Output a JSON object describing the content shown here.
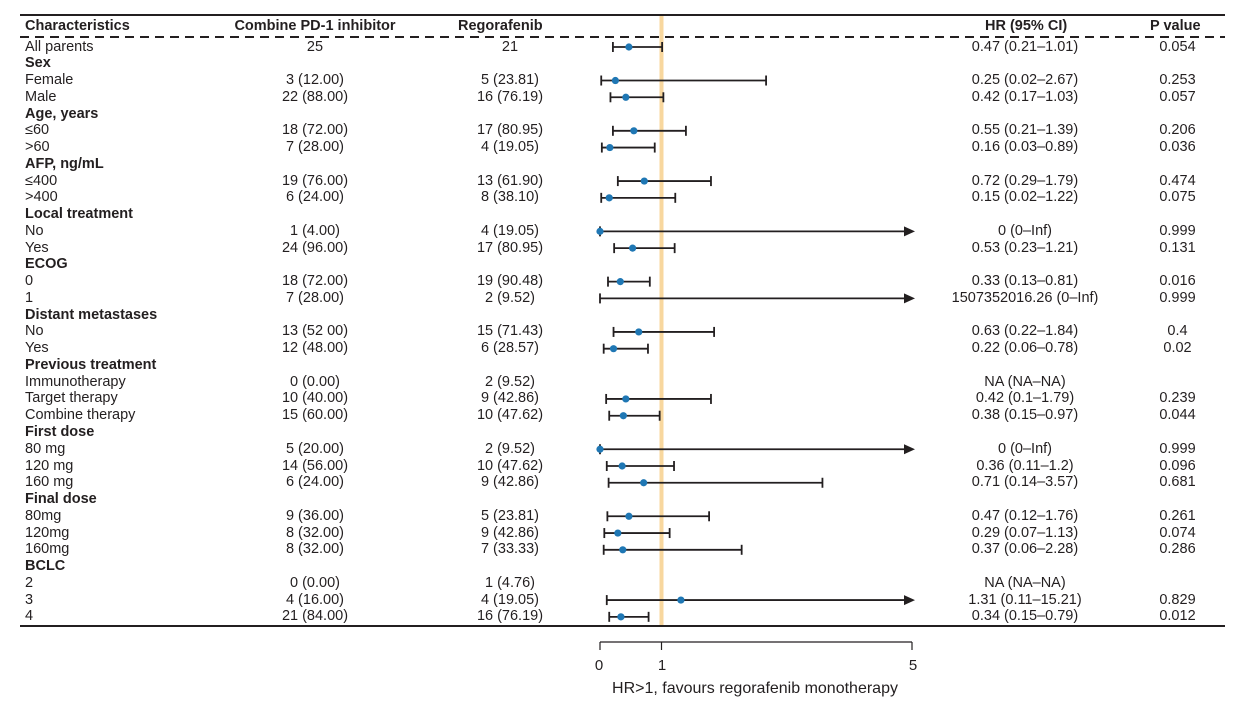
{
  "headers": {
    "characteristics": "Characteristics",
    "combine": "Combine PD-1 inhibitor",
    "regorafenib": "Regorafenib",
    "hr": "HR (95% CI)",
    "pvalue": "P value"
  },
  "chart_data": {
    "type": "forest",
    "xlabel": "HR>1, favours regorafenib monotherapy",
    "xlim": [
      0,
      5
    ],
    "ticks": [
      "0",
      "1",
      "5"
    ],
    "tick_values": [
      0,
      1,
      5
    ],
    "reference_line": 1,
    "rows": [
      {
        "label": "All parents",
        "group": false,
        "combine": "25",
        "regorafenib": "21",
        "hr_text": "0.47 (0.21–1.01)",
        "p": "0.054",
        "hr": 0.47,
        "lo": 0.21,
        "hi": 1.01,
        "arrow": false
      },
      {
        "label": "Sex",
        "group": true
      },
      {
        "label": "Female",
        "group": false,
        "combine": "3 (12.00)",
        "regorafenib": "5 (23.81)",
        "hr_text": "0.25 (0.02–2.67)",
        "p": "0.253",
        "hr": 0.25,
        "lo": 0.02,
        "hi": 2.67,
        "arrow": false
      },
      {
        "label": "Male",
        "group": false,
        "combine": "22 (88.00)",
        "regorafenib": "16 (76.19)",
        "hr_text": "0.42 (0.17–1.03)",
        "p": "0.057",
        "hr": 0.42,
        "lo": 0.17,
        "hi": 1.03,
        "arrow": false
      },
      {
        "label": "Age, years",
        "group": true
      },
      {
        "label": "≤60",
        "group": false,
        "combine": "18 (72.00)",
        "regorafenib": "17 (80.95)",
        "hr_text": "0.55 (0.21–1.39)",
        "p": "0.206",
        "hr": 0.55,
        "lo": 0.21,
        "hi": 1.39,
        "arrow": false
      },
      {
        "label": ">60",
        "group": false,
        "combine": "7 (28.00)",
        "regorafenib": "4 (19.05)",
        "hr_text": "0.16 (0.03–0.89)",
        "p": "0.036",
        "hr": 0.16,
        "lo": 0.03,
        "hi": 0.89,
        "arrow": false
      },
      {
        "label": "AFP, ng/mL",
        "group": true
      },
      {
        "label": "≤400",
        "group": false,
        "combine": "19 (76.00)",
        "regorafenib": "13 (61.90)",
        "hr_text": "0.72 (0.29–1.79)",
        "p": "0.474",
        "hr": 0.72,
        "lo": 0.29,
        "hi": 1.79,
        "arrow": false
      },
      {
        "label": ">400",
        "group": false,
        "combine": "6 (24.00)",
        "regorafenib": "8 (38.10)",
        "hr_text": "0.15 (0.02–1.22)",
        "p": "0.075",
        "hr": 0.15,
        "lo": 0.02,
        "hi": 1.22,
        "arrow": false
      },
      {
        "label": "Local treatment",
        "group": true
      },
      {
        "label": "No",
        "group": false,
        "combine": "1 (4.00)",
        "regorafenib": "4 (19.05)",
        "hr_text": "0 (0–Inf)",
        "p": "0.999",
        "hr": 0,
        "lo": 0,
        "hi": 5,
        "arrow": true
      },
      {
        "label": "Yes",
        "group": false,
        "combine": "24 (96.00)",
        "regorafenib": "17 (80.95)",
        "hr_text": "0.53 (0.23–1.21)",
        "p": "0.131",
        "hr": 0.53,
        "lo": 0.23,
        "hi": 1.21,
        "arrow": false
      },
      {
        "label": "ECOG",
        "group": true
      },
      {
        "label": "0",
        "group": false,
        "combine": "18 (72.00)",
        "regorafenib": "19 (90.48)",
        "hr_text": "0.33 (0.13–0.81)",
        "p": "0.016",
        "hr": 0.33,
        "lo": 0.13,
        "hi": 0.81,
        "arrow": false
      },
      {
        "label": "1",
        "group": false,
        "combine": "7 (28.00)",
        "regorafenib": "2 (9.52)",
        "hr_text": "1507352016.26 (0–Inf)",
        "p": "0.999",
        "hr": null,
        "lo": 0,
        "hi": 5,
        "arrow": true
      },
      {
        "label": "Distant metastases",
        "group": true
      },
      {
        "label": "No",
        "group": false,
        "combine": "13 (52 00)",
        "regorafenib": "15 (71.43)",
        "hr_text": "0.63 (0.22–1.84)",
        "p": "0.4",
        "hr": 0.63,
        "lo": 0.22,
        "hi": 1.84,
        "arrow": false
      },
      {
        "label": "Yes",
        "group": false,
        "combine": "12 (48.00)",
        "regorafenib": "6 (28.57)",
        "hr_text": "0.22 (0.06–0.78)",
        "p": "0.02",
        "hr": 0.22,
        "lo": 0.06,
        "hi": 0.78,
        "arrow": false
      },
      {
        "label": "Previous treatment",
        "group": true
      },
      {
        "label": "Immunotherapy",
        "group": false,
        "combine": "0 (0.00)",
        "regorafenib": "2 (9.52)",
        "hr_text": "NA (NA–NA)",
        "p": "",
        "hr": null,
        "lo": null,
        "hi": null,
        "arrow": false
      },
      {
        "label": "Target therapy",
        "group": false,
        "combine": "10 (40.00)",
        "regorafenib": "9 (42.86)",
        "hr_text": "0.42 (0.1–1.79)",
        "p": "0.239",
        "hr": 0.42,
        "lo": 0.1,
        "hi": 1.79,
        "arrow": false
      },
      {
        "label": "Combine therapy",
        "group": false,
        "combine": "15 (60.00)",
        "regorafenib": "10 (47.62)",
        "hr_text": "0.38 (0.15–0.97)",
        "p": "0.044",
        "hr": 0.38,
        "lo": 0.15,
        "hi": 0.97,
        "arrow": false
      },
      {
        "label": "First dose",
        "group": true
      },
      {
        "label": "80 mg",
        "group": false,
        "combine": "5 (20.00)",
        "regorafenib": "2 (9.52)",
        "hr_text": "0 (0–Inf)",
        "p": "0.999",
        "hr": 0,
        "lo": 0,
        "hi": 5,
        "arrow": true
      },
      {
        "label": "120 mg",
        "group": false,
        "combine": "14 (56.00)",
        "regorafenib": "10 (47.62)",
        "hr_text": "0.36 (0.11–1.2)",
        "p": "0.096",
        "hr": 0.36,
        "lo": 0.11,
        "hi": 1.2,
        "arrow": false
      },
      {
        "label": "160 mg",
        "group": false,
        "combine": "6 (24.00)",
        "regorafenib": "9 (42.86)",
        "hr_text": "0.71 (0.14–3.57)",
        "p": "0.681",
        "hr": 0.71,
        "lo": 0.14,
        "hi": 3.57,
        "arrow": false
      },
      {
        "label": "Final dose",
        "group": true
      },
      {
        "label": "80mg",
        "group": false,
        "combine": "9 (36.00)",
        "regorafenib": "5 (23.81)",
        "hr_text": "0.47 (0.12–1.76)",
        "p": "0.261",
        "hr": 0.47,
        "lo": 0.12,
        "hi": 1.76,
        "arrow": false
      },
      {
        "label": "120mg",
        "group": false,
        "combine": "8 (32.00)",
        "regorafenib": "9 (42.86)",
        "hr_text": "0.29 (0.07–1.13)",
        "p": "0.074",
        "hr": 0.29,
        "lo": 0.07,
        "hi": 1.13,
        "arrow": false
      },
      {
        "label": "160mg",
        "group": false,
        "combine": "8 (32.00)",
        "regorafenib": "7 (33.33)",
        "hr_text": "0.37 (0.06–2.28)",
        "p": "0.286",
        "hr": 0.37,
        "lo": 0.06,
        "hi": 2.28,
        "arrow": false
      },
      {
        "label": "BCLC",
        "group": true
      },
      {
        "label": "2",
        "group": false,
        "combine": "0 (0.00)",
        "regorafenib": "1 (4.76)",
        "hr_text": "NA (NA–NA)",
        "p": "",
        "hr": null,
        "lo": null,
        "hi": null,
        "arrow": false
      },
      {
        "label": "3",
        "group": false,
        "combine": "4 (16.00)",
        "regorafenib": "4 (19.05)",
        "hr_text": "1.31 (0.11–15.21)",
        "p": "0.829",
        "hr": 1.31,
        "lo": 0.11,
        "hi": 5,
        "arrow": true
      },
      {
        "label": "4",
        "group": false,
        "combine": "21 (84.00)",
        "regorafenib": "16 (76.19)",
        "hr_text": "0.34 (0.15–0.79)",
        "p": "0.012",
        "hr": 0.34,
        "lo": 0.15,
        "hi": 0.79,
        "arrow": false
      }
    ]
  }
}
